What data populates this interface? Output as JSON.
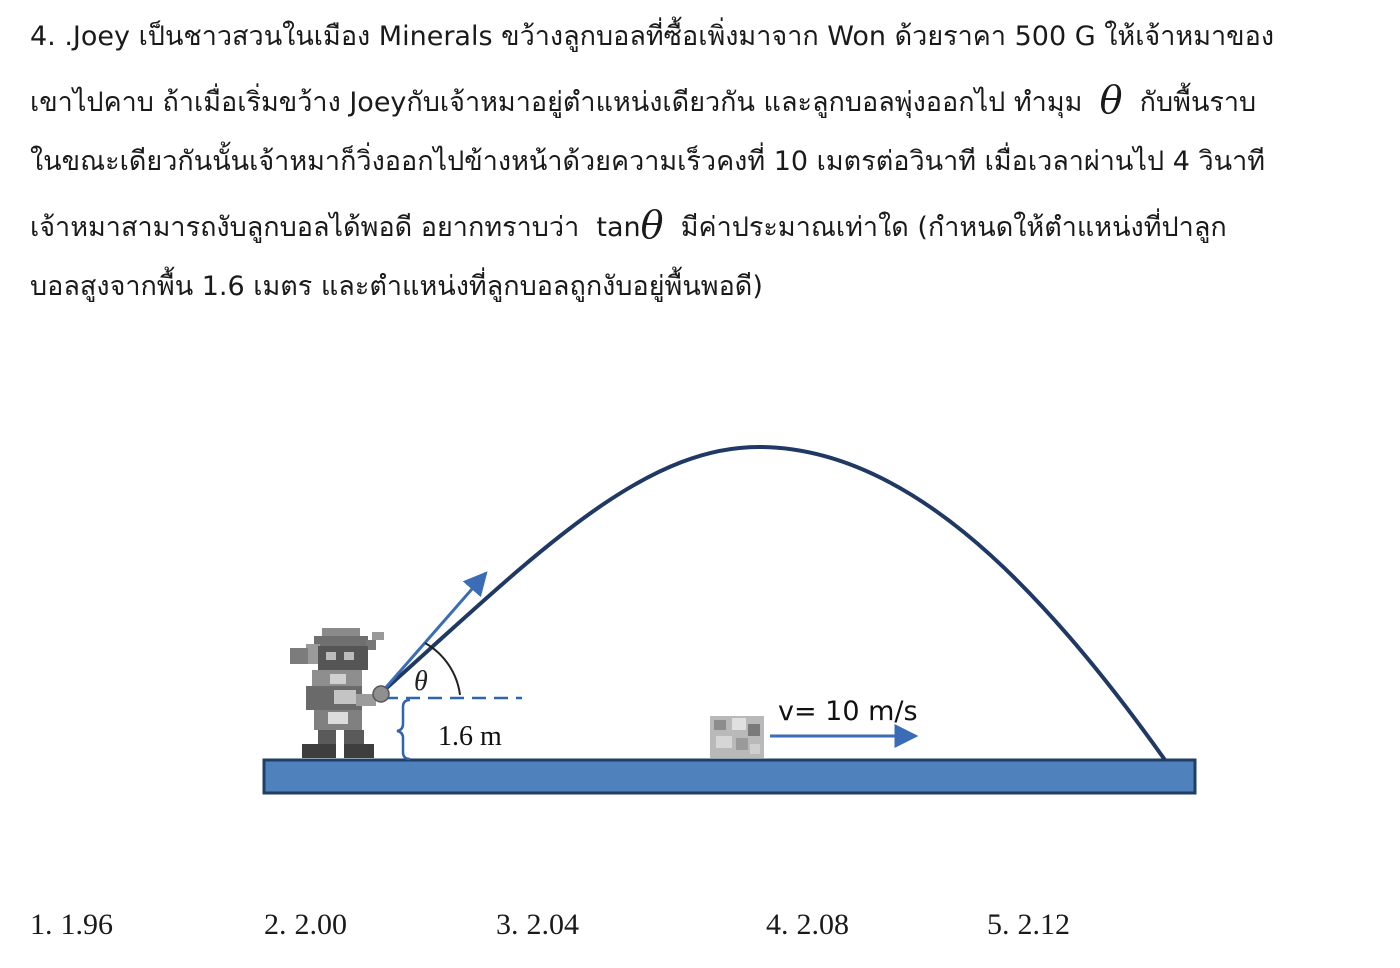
{
  "question": {
    "line1": "4. .Joey เป็นชาวสวนในเมือง Minerals ขว้างลูกบอลที่ซื้อเพิ่งมาจาก Won ด้วยราคา 500 G ให้เจ้าหมาของ",
    "line2_a": "เขาไปคาบ ถ้าเมื่อเริ่มขว้าง Joeyกับเจ้าหมาอยู่ตำแหน่งเดียวกัน และลูกบอลพุ่งออกไป ทำมุม",
    "line2_theta": "θ",
    "line2_b": "กับพื้นราบ",
    "line3": "ในขณะเดียวกันนั้นเจ้าหมาก็วิ่งออกไปข้างหน้าด้วยความเร็วคงที่ 10 เมตรต่อวินาที เมื่อเวลาผ่านไป 4 วินาที",
    "line4_a": "เจ้าหมาสามารถงับลูกบอลได้พอดี อยากทราบว่า",
    "line4_tan": "tan",
    "line4_theta": "θ",
    "line4_b": "มีค่าประมาณเท่าใด (กำหนดให้ตำแหน่งที่ปาลูก",
    "line5": "บอลสูงจากพื้น 1.6 เมตร และตำแหน่งที่ลูกบอลถูกงับอยู่พื้นพอดี)"
  },
  "diagram": {
    "angle_label": "θ",
    "height_label": "1.6 m",
    "velocity_label": "v= 10 m/s",
    "colors": {
      "ground_fill": "#4f81bd",
      "ground_stroke": "#1f3f66",
      "trajectory": "#1f3864",
      "arrow": "#3a6db5",
      "bracket": "#2e64b0",
      "dash": "#2e64b0"
    }
  },
  "choices": [
    {
      "num": "1.",
      "value": "1.96"
    },
    {
      "num": "2.",
      "value": "2.00"
    },
    {
      "num": "3.",
      "value": "2.04"
    },
    {
      "num": "4.",
      "value": "2.08"
    },
    {
      "num": "5.",
      "value": "2.12"
    }
  ]
}
